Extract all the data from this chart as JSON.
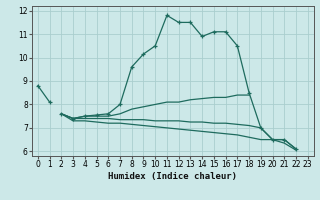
{
  "title": "",
  "xlabel": "Humidex (Indice chaleur)",
  "ylabel": "",
  "bg_color": "#cce8e8",
  "grid_color": "#aacece",
  "line_color": "#1e6b5e",
  "xlim": [
    -0.5,
    23.5
  ],
  "ylim": [
    5.8,
    12.2
  ],
  "yticks": [
    6,
    7,
    8,
    9,
    10,
    11,
    12
  ],
  "xticks": [
    0,
    1,
    2,
    3,
    4,
    5,
    6,
    7,
    8,
    9,
    10,
    11,
    12,
    13,
    14,
    15,
    16,
    17,
    18,
    19,
    20,
    21,
    22,
    23
  ],
  "series": [
    {
      "x": [
        0,
        1
      ],
      "y": [
        8.8,
        8.1
      ],
      "marker": true
    },
    {
      "x": [
        2,
        3,
        4,
        5,
        6,
        7,
        8,
        9,
        10,
        11,
        12,
        13,
        14,
        15,
        16,
        17,
        18,
        19,
        20,
        21,
        22
      ],
      "y": [
        7.6,
        7.4,
        7.5,
        7.55,
        7.6,
        8.0,
        9.6,
        10.15,
        10.5,
        11.8,
        11.5,
        11.5,
        10.9,
        11.1,
        11.1,
        10.5,
        8.5,
        7.0,
        6.5,
        6.5,
        6.1
      ],
      "marker": true
    },
    {
      "x": [
        2,
        3,
        4,
        5,
        6,
        7,
        8,
        9,
        10,
        11,
        12,
        13,
        14,
        15,
        16,
        17,
        18
      ],
      "y": [
        7.6,
        7.4,
        7.5,
        7.5,
        7.5,
        7.6,
        7.8,
        7.9,
        8.0,
        8.1,
        8.1,
        8.2,
        8.25,
        8.3,
        8.3,
        8.4,
        8.4
      ],
      "marker": false
    },
    {
      "x": [
        2,
        3,
        4,
        5,
        6,
        7,
        8,
        9,
        10,
        11,
        12,
        13,
        14,
        15,
        16,
        17,
        18,
        19,
        20,
        21,
        22
      ],
      "y": [
        7.6,
        7.4,
        7.4,
        7.4,
        7.4,
        7.35,
        7.35,
        7.35,
        7.3,
        7.3,
        7.3,
        7.25,
        7.25,
        7.2,
        7.2,
        7.15,
        7.1,
        7.0,
        6.5,
        6.5,
        6.1
      ],
      "marker": false
    },
    {
      "x": [
        2,
        3,
        4,
        5,
        6,
        7,
        8,
        9,
        10,
        11,
        12,
        13,
        14,
        15,
        16,
        17,
        18,
        19,
        20,
        21,
        22
      ],
      "y": [
        7.6,
        7.3,
        7.3,
        7.25,
        7.2,
        7.2,
        7.15,
        7.1,
        7.05,
        7.0,
        6.95,
        6.9,
        6.85,
        6.8,
        6.75,
        6.7,
        6.6,
        6.5,
        6.5,
        6.35,
        6.05
      ],
      "marker": false
    }
  ]
}
